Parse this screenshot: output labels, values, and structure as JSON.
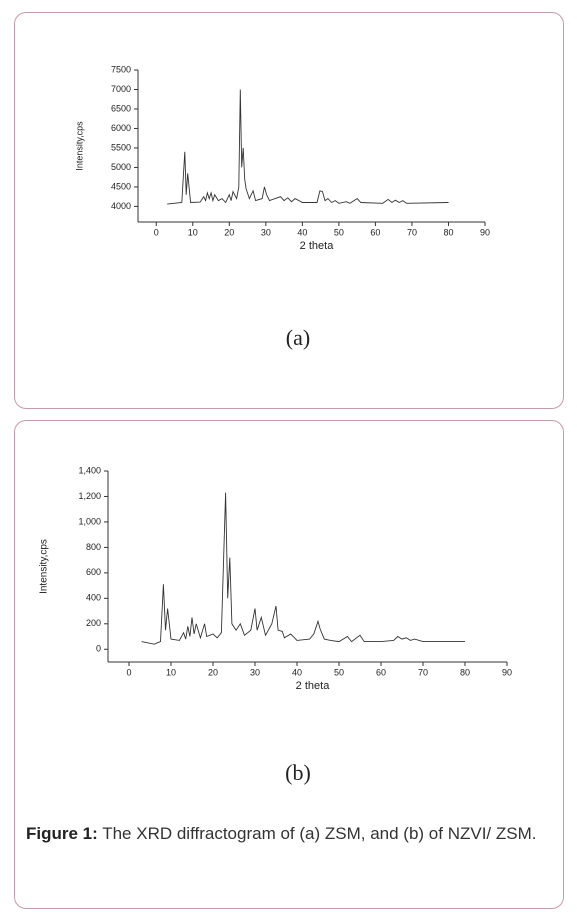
{
  "chart_data": [
    {
      "type": "line",
      "panel_label": "(a)",
      "x_label": "2 theta",
      "y_label": "Intensity,cps",
      "xlim": [
        -5,
        90
      ],
      "xticks": [
        0,
        10,
        20,
        30,
        40,
        50,
        60,
        70,
        80,
        90
      ],
      "ylim": [
        3600,
        7500
      ],
      "yticks": [
        4000,
        4500,
        5000,
        5500,
        6000,
        6500,
        7000,
        7500
      ],
      "color": "#333333",
      "x": [
        3,
        7,
        7.8,
        8.2,
        8.6,
        9.4,
        12,
        13,
        13.5,
        14,
        14.5,
        15,
        15.5,
        16,
        17,
        18,
        19,
        20,
        20.5,
        21,
        22,
        22.6,
        23,
        23.4,
        23.8,
        24.2,
        24.6,
        25.5,
        26.5,
        27.2,
        29,
        29.6,
        30.2,
        31,
        34,
        35,
        36,
        37,
        38,
        40,
        44,
        44.8,
        45.5,
        46.2,
        47,
        48,
        49,
        50,
        52,
        53,
        55,
        56,
        62,
        63.5,
        64.5,
        65.5,
        66.5,
        67.5,
        68.5,
        80
      ],
      "values": [
        4060,
        4100,
        5400,
        4300,
        4850,
        4100,
        4110,
        4250,
        4150,
        4350,
        4200,
        4350,
        4150,
        4300,
        4150,
        4200,
        4100,
        4300,
        4150,
        4380,
        4200,
        4500,
        7000,
        5000,
        5500,
        4700,
        4450,
        4200,
        4400,
        4150,
        4200,
        4500,
        4300,
        4150,
        4250,
        4150,
        4220,
        4120,
        4200,
        4100,
        4100,
        4400,
        4380,
        4150,
        4200,
        4100,
        4150,
        4080,
        4120,
        4080,
        4200,
        4100,
        4080,
        4180,
        4100,
        4160,
        4100,
        4150,
        4080,
        4100
      ]
    },
    {
      "type": "line",
      "panel_label": "(b)",
      "x_label": "2 theta",
      "y_label": "Intensity,cps",
      "xlim": [
        -5,
        90
      ],
      "xticks": [
        0,
        10,
        20,
        30,
        40,
        50,
        60,
        70,
        80,
        90
      ],
      "ylim": [
        -100,
        1400
      ],
      "yticks": [
        0,
        200,
        400,
        600,
        800,
        {
          "value": 1000,
          "label": "1,000"
        },
        {
          "value": 1200,
          "label": "1,200"
        },
        {
          "value": 1400,
          "label": "1,400"
        }
      ],
      "color": "#333333",
      "x": [
        3,
        6,
        7.5,
        8.2,
        8.7,
        9.2,
        10,
        12,
        13,
        13.5,
        14,
        14.5,
        15,
        15.5,
        16,
        17,
        18,
        18.5,
        20,
        21,
        22,
        23,
        23.5,
        24,
        24.5,
        25.5,
        26.5,
        27.5,
        29,
        30,
        30.5,
        31.5,
        32.5,
        34,
        35,
        35.5,
        36.5,
        37,
        38.5,
        40,
        43,
        44,
        45,
        45.5,
        46.5,
        48,
        50,
        52,
        53,
        55,
        56,
        60,
        63,
        64,
        65,
        66,
        67,
        68,
        70,
        80
      ],
      "values": [
        60,
        40,
        60,
        510,
        150,
        320,
        80,
        70,
        130,
        80,
        180,
        100,
        250,
        120,
        200,
        90,
        200,
        100,
        120,
        90,
        130,
        1230,
        400,
        720,
        200,
        150,
        200,
        110,
        150,
        320,
        150,
        250,
        110,
        200,
        340,
        150,
        140,
        90,
        120,
        70,
        80,
        120,
        220,
        160,
        80,
        70,
        60,
        100,
        60,
        110,
        60,
        60,
        70,
        100,
        80,
        90,
        70,
        80,
        60,
        60
      ]
    }
  ],
  "caption": {
    "label": "Figure 1:",
    "text": "The XRD diffractogram of (a) ZSM, and (b) of NZVI/ ZSM."
  }
}
